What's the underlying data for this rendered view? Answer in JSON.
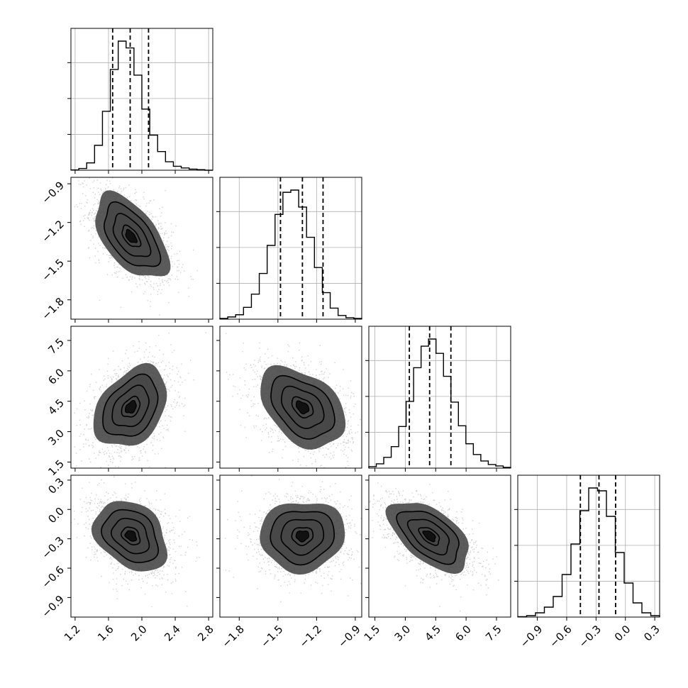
{
  "chart_data": {
    "type": "corner",
    "title": "",
    "grid": true,
    "colors": {
      "line": "#000000",
      "density": "#000000",
      "points": "#9a9a9a",
      "grid": "#b0b0b0"
    },
    "parameters": [
      {
        "range": [
          1.15,
          2.85
        ],
        "ticks": [
          1.2,
          1.6,
          2.0,
          2.4,
          2.8
        ],
        "tick_labels": [
          "1.2",
          "1.6",
          "2.0",
          "2.4",
          "2.8"
        ],
        "mean": 1.87,
        "sd": 0.22,
        "quantiles": [
          1.65,
          1.86,
          2.08
        ],
        "hist": [
          0.6,
          3,
          13,
          44,
          104,
          178,
          228,
          216,
          168,
          108,
          62,
          33,
          15,
          7,
          4,
          2,
          1,
          0
        ]
      },
      {
        "range": [
          -1.95,
          -0.85
        ],
        "ticks": [
          -1.8,
          -1.5,
          -1.2,
          -0.9
        ],
        "tick_labels": [
          "−1.8",
          "−1.5",
          "−1.2",
          "−0.9"
        ],
        "mean": -1.31,
        "sd": 0.165,
        "quantiles": [
          -1.48,
          -1.31,
          -1.15
        ],
        "hist": [
          1,
          3,
          6,
          16,
          34,
          62,
          100,
          142,
          172,
          175,
          152,
          111,
          70,
          36,
          15,
          5,
          2,
          1
        ]
      },
      {
        "range": [
          1.2,
          8.2
        ],
        "ticks": [
          1.5,
          3.0,
          4.5,
          6.0,
          7.5
        ],
        "tick_labels": [
          "1.5",
          "3.0",
          "4.5",
          "6.0",
          "7.5"
        ],
        "mean": 4.2,
        "sd": 1.0,
        "quantiles": [
          3.2,
          4.2,
          5.25
        ],
        "hist": [
          2,
          6,
          15,
          30,
          58,
          93,
          140,
          170,
          180,
          160,
          128,
          92,
          59,
          34,
          19,
          10,
          5,
          3,
          1
        ]
      },
      {
        "range": [
          -1.1,
          0.35
        ],
        "ticks": [
          -0.9,
          -0.6,
          -0.3,
          0.0,
          0.3
        ],
        "tick_labels": [
          "−0.9",
          "−0.6",
          "−0.3",
          "0.0",
          "0.3"
        ],
        "mean": -0.27,
        "sd": 0.18,
        "quantiles": [
          -0.46,
          -0.27,
          -0.1
        ],
        "hist": [
          0.6,
          2,
          6,
          14,
          29,
          60,
          103,
          150,
          182,
          178,
          142,
          91,
          48,
          20,
          6,
          2
        ]
      }
    ],
    "correlations": {
      "1-0": -0.55,
      "2-0": 0.35,
      "2-1": -0.4,
      "3-0": -0.3,
      "3-1": 0.05,
      "3-2": -0.55
    }
  }
}
